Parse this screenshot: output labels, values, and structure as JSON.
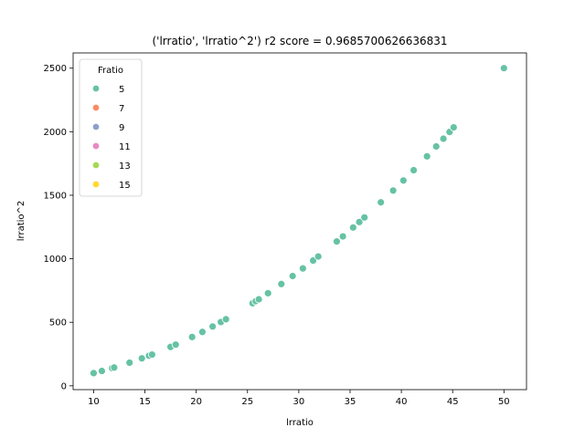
{
  "chart_data": {
    "type": "scatter",
    "title": "('lrratio', 'lrratio^2') r2 score = 0.9685700626636831",
    "xlabel": "lrratio",
    "ylabel": "lrratio^2",
    "xlim": [
      8,
      52.2
    ],
    "ylim": [
      -30,
      2620
    ],
    "xticks": [
      10,
      15,
      20,
      25,
      30,
      35,
      40,
      45,
      50
    ],
    "yticks": [
      0,
      500,
      1000,
      1500,
      2000,
      2500
    ],
    "grid": false,
    "legend": {
      "title": "Fratio",
      "placement": "top-left",
      "entries": [
        {
          "label": "5",
          "color": "#66c2a5"
        },
        {
          "label": "7",
          "color": "#fc8d62"
        },
        {
          "label": "9",
          "color": "#8da0cb"
        },
        {
          "label": "11",
          "color": "#e78ac3"
        },
        {
          "label": "13",
          "color": "#a6d854"
        },
        {
          "label": "15",
          "color": "#ffd92f"
        }
      ]
    },
    "series": [
      {
        "name": "5",
        "color": "#66c2a5",
        "x": [
          10.0,
          10.8,
          11.8,
          12.0,
          13.5,
          14.7,
          15.4,
          15.7,
          17.5,
          18.0,
          19.6,
          20.6,
          21.6,
          22.4,
          22.9,
          25.5,
          25.8,
          26.1,
          27.0,
          28.3,
          29.4,
          30.4,
          31.4,
          31.9,
          33.7,
          34.3,
          35.3,
          35.9,
          36.4,
          38.0,
          39.2,
          40.2,
          41.2,
          42.5,
          43.4,
          44.1,
          44.7,
          45.1,
          50.0
        ],
        "y": [
          100,
          117,
          139,
          144,
          182,
          216,
          237,
          246,
          306,
          324,
          384,
          424,
          467,
          502,
          524,
          650,
          666,
          681,
          729,
          801,
          864,
          924,
          986,
          1018,
          1136,
          1176,
          1246,
          1289,
          1325,
          1444,
          1537,
          1616,
          1697,
          1806,
          1884,
          1945,
          1998,
          2034,
          2500
        ]
      }
    ]
  }
}
